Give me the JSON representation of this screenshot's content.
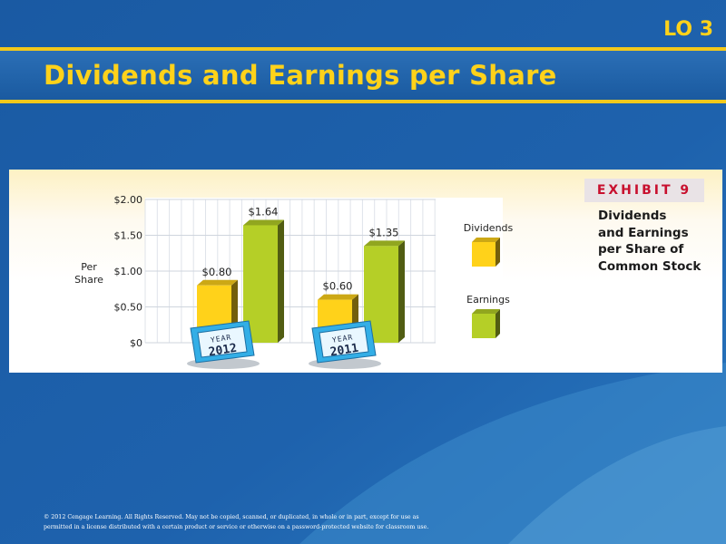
{
  "slide": {
    "lo_badge": "LO 3",
    "title": "Dividends and Earnings per Share",
    "copyright_lines": [
      "© 2012 Cengage Learning. All Rights Reserved. May not be copied, scanned, or duplicated, in whole or in part, except for use as",
      "permitted in a license distributed with a certain product or service or otherwise on a password-protected website for classroom use."
    ]
  },
  "exhibit": {
    "tag": "EXHIBIT 9",
    "caption_lines": [
      "Dividends",
      "and Earnings",
      "per Share of",
      "Common Stock"
    ]
  },
  "colors": {
    "background": "#1d5ea8",
    "accent_yellow": "#f2c81b",
    "dividends": "#ffd21a",
    "earnings": "#b5cf27",
    "plaque": "#33aee6"
  },
  "chart_data": {
    "type": "bar",
    "title": "",
    "xlabel": "",
    "ylabel": "Per Share",
    "ylim": [
      0,
      2
    ],
    "yticks": [
      "$2.00",
      "$1.50",
      "$1.00",
      "$0.50",
      "$0"
    ],
    "ytick_values": [
      2.0,
      1.5,
      1.0,
      0.5,
      0
    ],
    "grid": true,
    "legend_position": "right",
    "categories": [
      "YEAR 2012",
      "YEAR 2011"
    ],
    "category_plaques": [
      {
        "word": "YEAR",
        "year": "2012"
      },
      {
        "word": "YEAR",
        "year": "2011"
      }
    ],
    "series": [
      {
        "name": "Dividends",
        "color": "#ffd21a",
        "values": [
          0.8,
          0.6
        ],
        "labels": [
          "$0.80",
          "$0.60"
        ]
      },
      {
        "name": "Earnings",
        "color": "#b5cf27",
        "values": [
          1.64,
          1.35
        ],
        "labels": [
          "$1.64",
          "$1.35"
        ]
      }
    ]
  }
}
